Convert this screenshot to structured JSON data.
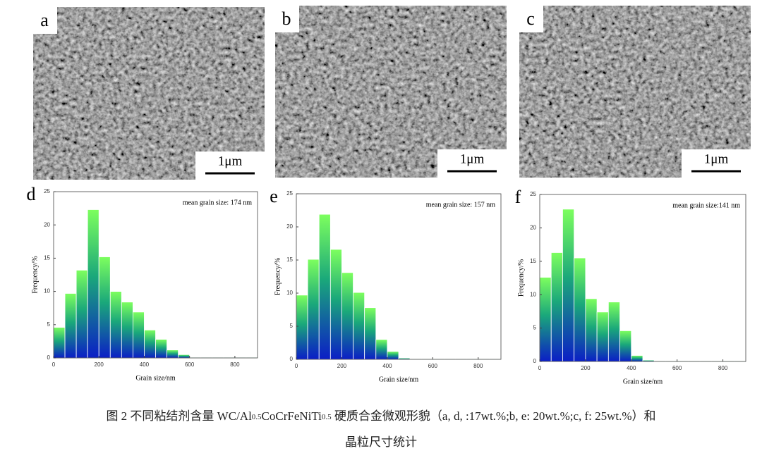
{
  "images": [
    {
      "label": "a",
      "scale_bar": "1μm"
    },
    {
      "label": "b",
      "scale_bar": "1μm"
    },
    {
      "label": "c",
      "scale_bar": "1μm"
    }
  ],
  "chart_data": [
    {
      "type": "histogram",
      "panel": "d",
      "annotation": "mean grain size: 174 nm",
      "x_label": "Grain size/nm",
      "y_label": "Frequency/%",
      "bins": [
        0,
        50,
        100,
        150,
        200,
        250,
        300,
        350,
        400,
        450,
        500,
        550,
        600,
        650,
        700,
        750,
        800,
        850,
        900
      ],
      "values": [
        4.6,
        9.7,
        13.2,
        22.3,
        15.2,
        10.0,
        8.4,
        6.9,
        4.2,
        2.8,
        1.2,
        0.5,
        0.1,
        0.1,
        0.1,
        0.1,
        0.1,
        0.1
      ],
      "xlim": [
        0,
        900
      ],
      "xticks": [
        0,
        200,
        400,
        600,
        800
      ],
      "ylim": [
        0,
        25
      ],
      "yticks": [
        0,
        5,
        10,
        15,
        20,
        25
      ],
      "gradient": [
        "#7dff5e",
        "#0b1ec6"
      ]
    },
    {
      "type": "histogram",
      "panel": "e",
      "annotation": "mean grain size: 157 nm",
      "x_label": "Grain size/nm",
      "y_label": "Frequency/%",
      "bins": [
        0,
        50,
        100,
        150,
        200,
        250,
        300,
        350,
        400,
        450,
        500,
        550,
        600,
        650,
        700,
        750,
        800,
        850,
        900
      ],
      "values": [
        9.7,
        15.1,
        21.9,
        16.6,
        13.1,
        10.1,
        7.8,
        3.0,
        1.2,
        0.2,
        0.1,
        0.1,
        0.1,
        0.1,
        0.1,
        0.1,
        0.1,
        0.1
      ],
      "xlim": [
        0,
        900
      ],
      "xticks": [
        0,
        200,
        400,
        600,
        800
      ],
      "ylim": [
        0,
        25
      ],
      "yticks": [
        0,
        5,
        10,
        15,
        20,
        25
      ],
      "gradient": [
        "#7dff5e",
        "#0b1ec6"
      ]
    },
    {
      "type": "histogram",
      "panel": "f",
      "annotation": "mean grain size:141 nm",
      "x_label": "Grain size/nm",
      "y_label": "Frequency/%",
      "bins": [
        0,
        50,
        100,
        150,
        200,
        250,
        300,
        350,
        400,
        450,
        500,
        550,
        600,
        650,
        700,
        750,
        800,
        850,
        900
      ],
      "values": [
        12.6,
        16.3,
        22.8,
        15.5,
        9.4,
        7.4,
        8.9,
        4.6,
        0.9,
        0.2,
        0.1,
        0.1,
        0.1,
        0.1,
        0.1,
        0.1,
        0.1,
        0.1
      ],
      "xlim": [
        0,
        900
      ],
      "xticks": [
        0,
        200,
        400,
        600,
        800
      ],
      "ylim": [
        0,
        25
      ],
      "yticks": [
        0,
        5,
        10,
        15,
        20,
        25
      ],
      "gradient": [
        "#7dff5e",
        "#0b1ec6"
      ]
    }
  ],
  "caption": {
    "line1": [
      "图 2  不同粘结剂含量 WC/Al",
      "0.5",
      "CoCrFeNiTi",
      "0.5",
      " 硬质合金微观形貌（a, d, :17wt.%;b, e: 20wt.%;c, f: 25wt.%）和"
    ],
    "line2": "晶粒尺寸统计"
  }
}
